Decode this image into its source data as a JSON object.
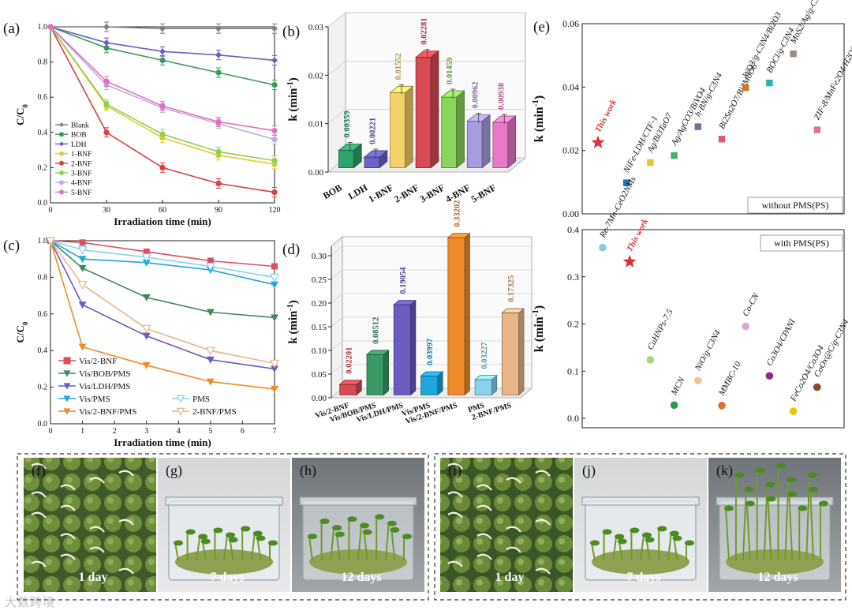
{
  "colors": {
    "Blank": "#7f7f7f",
    "BOB": "#3e9a5a",
    "LDH": "#6b5fc0",
    "1-BNF": "#e8c93a",
    "2-BNF": "#d94040",
    "3-BNF": "#8fd14f",
    "4-BNF": "#b7b1e3",
    "5-BNF": "#e06fc0",
    "Vis/2-BNF": "#d94f5c",
    "Vis/BOB/PMS": "#3f8a5a",
    "Vis/LDH/PMS": "#6a5cc0",
    "Vis/PMS": "#1fa7dd",
    "Vis/2-BNF/PMS": "#ef8c2a",
    "PMS": "#86d3ee",
    "2-BNF/PMS": "#e7b78a",
    "bar_b": [
      "#2ea36e",
      "#6b62c4",
      "#f5d16b",
      "#d94a55",
      "#8ad55a",
      "#a99be0",
      "#e77ac4"
    ],
    "bar_d": [
      "#d94a55",
      "#3a9a66",
      "#6a5cc0",
      "#1fa7dd",
      "#ef8c2a",
      "#86d3ee",
      "#e7b78a"
    ]
  },
  "chart_data": [
    {
      "panel": "(a)",
      "type": "line",
      "xlabel": "Irradiation time (min)",
      "ylabel": "C/C0",
      "x": [
        0,
        30,
        60,
        90,
        120
      ],
      "xlim": [
        0,
        120
      ],
      "ylim": [
        0,
        1.0
      ],
      "xticks": [
        "0",
        "30",
        "60",
        "90",
        "120"
      ],
      "yticks": [
        "0.0",
        "0.2",
        "0.4",
        "0.6",
        "0.8",
        "1.0"
      ],
      "series": [
        {
          "name": "Blank",
          "values": [
            1.0,
            1.0,
            0.99,
            0.99,
            0.99
          ]
        },
        {
          "name": "BOB",
          "values": [
            1.0,
            0.88,
            0.81,
            0.74,
            0.67
          ]
        },
        {
          "name": "LDH",
          "values": [
            1.0,
            0.91,
            0.86,
            0.84,
            0.81
          ]
        },
        {
          "name": "1-BNF",
          "values": [
            1.0,
            0.55,
            0.37,
            0.27,
            0.22
          ]
        },
        {
          "name": "2-BNF",
          "values": [
            1.0,
            0.4,
            0.2,
            0.11,
            0.06
          ]
        },
        {
          "name": "3-BNF",
          "values": [
            1.0,
            0.56,
            0.39,
            0.29,
            0.24
          ]
        },
        {
          "name": "4-BNF",
          "values": [
            1.0,
            0.67,
            0.54,
            0.45,
            0.36
          ]
        },
        {
          "name": "5-BNF",
          "values": [
            1.0,
            0.69,
            0.55,
            0.46,
            0.41
          ]
        }
      ]
    },
    {
      "panel": "(b)",
      "type": "bar",
      "ylabel": "k (min-1)",
      "ylim": [
        0,
        0.03
      ],
      "yticks": [
        "0.00",
        "0.01",
        "0.02",
        "0.03"
      ],
      "categories": [
        "BOB",
        "LDH",
        "1-BNF",
        "2-BNF",
        "3-BNF",
        "4-BNF",
        "5-BNF"
      ],
      "values": [
        0.00359,
        0.00221,
        0.01552,
        0.02281,
        0.01459,
        0.00962,
        0.00938
      ],
      "labels": [
        "0.00359",
        "0.00221",
        "0.01552",
        "0.02281",
        "0.01459",
        "0.00962",
        "0.00938"
      ]
    },
    {
      "panel": "(c)",
      "type": "line",
      "xlabel": "Irradiation time (min)",
      "ylabel": "C/C0",
      "x": [
        0,
        1,
        3,
        5,
        7
      ],
      "xlim": [
        0,
        7
      ],
      "ylim": [
        0,
        1.0
      ],
      "xticks": [
        "0",
        "1",
        "2",
        "3",
        "4",
        "5",
        "6",
        "7"
      ],
      "yticks": [
        "0.0",
        "0.2",
        "0.4",
        "0.6",
        "0.8",
        "1.0"
      ],
      "series": [
        {
          "name": "Vis/2-BNF",
          "values": [
            1.0,
            0.99,
            0.94,
            0.89,
            0.86
          ]
        },
        {
          "name": "Vis/BOB/PMS",
          "values": [
            1.0,
            0.85,
            0.69,
            0.61,
            0.58
          ]
        },
        {
          "name": "Vis/LDH/PMS",
          "values": [
            1.0,
            0.65,
            0.48,
            0.35,
            0.3
          ]
        },
        {
          "name": "Vis/PMS",
          "values": [
            1.0,
            0.9,
            0.88,
            0.84,
            0.76
          ]
        },
        {
          "name": "Vis/2-BNF/PMS",
          "values": [
            1.0,
            0.42,
            0.32,
            0.23,
            0.19
          ]
        },
        {
          "name": "PMS",
          "values": [
            1.0,
            0.95,
            0.91,
            0.86,
            0.8
          ]
        },
        {
          "name": "2-BNF/PMS",
          "values": [
            1.0,
            0.76,
            0.52,
            0.4,
            0.33
          ]
        }
      ]
    },
    {
      "panel": "(d)",
      "type": "bar",
      "ylabel": "k (min-1)",
      "ylim": [
        0,
        0.32
      ],
      "yticks": [
        "0.00",
        "0.05",
        "0.10",
        "0.15",
        "0.20",
        "0.25",
        "0.30"
      ],
      "categories": [
        "Vis/2-BNF",
        "Vis/BOB/PMS",
        "Vis/LDH/PMS",
        "Vis/PMS",
        "Vis/2-BNF/PMS",
        "PMS",
        "2-BNF/PMS"
      ],
      "values": [
        0.02201,
        0.08512,
        0.19054,
        0.03997,
        0.33202,
        0.03227,
        0.17325
      ],
      "labels": [
        "0.02201",
        "0.08512",
        "0.19054",
        "0.03997",
        "0.33202",
        "0.03227",
        "0.17325"
      ]
    },
    {
      "panel": "(e) top",
      "type": "scatter",
      "ylabel": "k (min-1)",
      "ylim": [
        0,
        0.06
      ],
      "yticks": [
        "0.00",
        "0.02",
        "0.04",
        "0.06"
      ],
      "legend": "without PMS(PS)",
      "points": [
        {
          "name": "This work",
          "value": 0.0225,
          "marker": "star",
          "color": "#d9343a",
          "highlight": true
        },
        {
          "name": "NiFe-LDH/CTF-1",
          "value": 0.0098,
          "marker": "square",
          "color": "#2b6fc2"
        },
        {
          "name": "Ag/Bi3TaO7",
          "value": 0.0162,
          "marker": "square",
          "color": "#f2c12e"
        },
        {
          "name": "Ag/AgCO3/BiVO4",
          "value": 0.0184,
          "marker": "square",
          "color": "#3cb36a"
        },
        {
          "name": "h-BN/g-C3N4",
          "value": 0.0275,
          "marker": "square",
          "color": "#6f6fa8"
        },
        {
          "name": "Bi2Sn2O7/Bi2MoO6",
          "value": 0.0236,
          "marker": "square",
          "color": "#e05a6a"
        },
        {
          "name": "WO3/g-C3N4/Bi2O3",
          "value": 0.0398,
          "marker": "square",
          "color": "#c77a2a"
        },
        {
          "name": "BOCl/g-C3N4",
          "value": 0.0413,
          "marker": "square",
          "color": "#22b5b3"
        },
        {
          "name": "MoS2/Ag/g-C3N4",
          "value": 0.0505,
          "marker": "square",
          "color": "#9e8a80"
        },
        {
          "name": "ZIF-8/MnFe2O4/H2O2",
          "value": 0.0265,
          "marker": "square",
          "color": "#e06f93"
        }
      ]
    },
    {
      "panel": "(e) bottom",
      "type": "scatter",
      "ylabel": "k (min-1)",
      "ylim": [
        -0.02,
        0.4
      ],
      "yticks": [
        "0.0",
        "0.1",
        "0.2",
        "0.3",
        "0.4"
      ],
      "legend": "with PMS(PS)",
      "points": [
        {
          "name": "Re-7Mn-CeO2NMs",
          "value": 0.362,
          "marker": "circle",
          "color": "#8fc7e8"
        },
        {
          "name": "This work",
          "value": 0.332,
          "marker": "star",
          "color": "#d9343a",
          "highlight": true
        },
        {
          "name": "CuHNPs-7.5",
          "value": 0.124,
          "marker": "circle",
          "color": "#a6d87a"
        },
        {
          "name": "MCN",
          "value": 0.028,
          "marker": "circle",
          "color": "#2e9a4e"
        },
        {
          "name": "NiO/g-C3N4",
          "value": 0.08,
          "marker": "circle",
          "color": "#f3c58c"
        },
        {
          "name": "MMBC-10",
          "value": 0.027,
          "marker": "circle",
          "color": "#e07028"
        },
        {
          "name": "Co-CN",
          "value": 0.195,
          "marker": "circle",
          "color": "#d9a3d8"
        },
        {
          "name": "Co3O4/CPANI",
          "value": 0.09,
          "marker": "circle",
          "color": "#8a2a8a"
        },
        {
          "name": "FeCo2O4/Co3O4",
          "value": 0.015,
          "marker": "circle",
          "color": "#f0c400"
        },
        {
          "name": "CoOx@C/g-C3N4",
          "value": 0.066,
          "marker": "circle",
          "color": "#8a4a2a"
        }
      ]
    }
  ],
  "photos": [
    {
      "label": "(f)",
      "caption": "1 day"
    },
    {
      "label": "(g)",
      "caption": "7 days"
    },
    {
      "label": "(h)",
      "caption": "12 days"
    },
    {
      "label": "(i)",
      "caption": "1 day"
    },
    {
      "label": "(j)",
      "caption": "7 days"
    },
    {
      "label": "(k)",
      "caption": "12 days"
    }
  ],
  "watermark": "大数跨境"
}
